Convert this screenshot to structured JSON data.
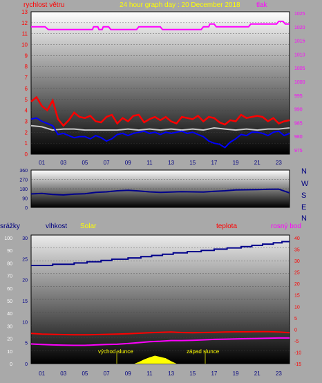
{
  "header": {
    "title": "24 hour graph day : 20 December 2018",
    "left_label": "rychlost větru",
    "right_label": "tlak"
  },
  "compass_labels": [
    "N",
    "W",
    "S",
    "E",
    "N"
  ],
  "bottom_labels": {
    "rain": "srážky",
    "humidity": "vlhkost",
    "solar": "Solar",
    "temperature": "teplota",
    "dewpoint": "rosný bod",
    "sunrise": "východ slunce",
    "sunset": "západ slunce"
  },
  "colors": {
    "background": "#a9a9a9",
    "title": "#ffff00",
    "wind_axis": "#ff0000",
    "pressure_axis": "#ff00ff",
    "gust": "#ff0000",
    "wind": "#0000ff",
    "wind_avg": "#c8c8c8",
    "pressure": "#ff00ff",
    "direction": "#00008b",
    "humidity": "#00008b",
    "solar": "#ffff00",
    "temperature": "#ff0000",
    "dewpoint": "#ff00ff",
    "rain_axis": "#ffffff",
    "compass": "#000080"
  },
  "chart_data": [
    {
      "type": "line",
      "title": "24 hour graph day : 20 December 2018",
      "x_ticks": [
        "01",
        "03",
        "05",
        "07",
        "09",
        "11",
        "13",
        "15",
        "17",
        "19",
        "21",
        "23"
      ],
      "xlim": [
        0,
        24
      ],
      "y_left": {
        "label": "rychlost větru",
        "ylim": [
          0,
          13
        ],
        "ticks": [
          "0",
          "1",
          "2",
          "3",
          "4",
          "5",
          "6",
          "7",
          "8",
          "9",
          "10",
          "11",
          "12",
          "13"
        ]
      },
      "y_right": {
        "label": "tlak",
        "ylim": [
          975,
          1025
        ],
        "ticks": [
          "975",
          "980",
          "985",
          "990",
          "995",
          "1000",
          "1005",
          "1010",
          "1015",
          "1020",
          "1025"
        ]
      },
      "series": [
        {
          "axis": "right",
          "style": "pressure",
          "x": [
            0,
            1.3,
            1.6,
            5.7,
            5.8,
            6.2,
            6.3,
            6.6,
            6.7,
            7.2,
            7.4,
            9.8,
            10,
            12.0,
            12.2,
            15.8,
            16,
            16.5,
            16.6,
            17.0,
            17.2,
            20.2,
            20.4,
            22.8,
            23.0,
            23.4,
            23.6,
            24
          ],
          "y": [
            1020,
            1020,
            1019,
            1019,
            1020,
            1020,
            1019,
            1019,
            1020,
            1020,
            1019,
            1019,
            1020,
            1020,
            1019,
            1019,
            1020,
            1020,
            1021,
            1021,
            1020,
            1020,
            1021,
            1021,
            1022,
            1022,
            1021,
            1021
          ]
        },
        {
          "axis": "left",
          "style": "gust",
          "x": [
            0,
            0.5,
            1,
            1.5,
            2,
            2.5,
            3,
            3.5,
            4,
            4.5,
            5,
            5.5,
            6,
            6.5,
            7,
            7.5,
            8,
            8.5,
            9,
            9.5,
            10,
            10.5,
            11,
            11.5,
            12,
            12.5,
            13,
            13.5,
            14,
            14.5,
            15,
            15.5,
            16,
            16.5,
            17,
            17.5,
            18,
            18.5,
            19,
            19.5,
            20,
            20.5,
            21,
            21.5,
            22,
            22.5,
            23,
            23.5,
            24
          ],
          "y": [
            4.8,
            5.2,
            4.4,
            4.0,
            4.9,
            3.2,
            2.6,
            3.1,
            3.8,
            3.4,
            3.3,
            3.5,
            3.0,
            2.9,
            3.4,
            3.6,
            2.8,
            3.3,
            3.0,
            3.5,
            3.6,
            2.9,
            3.2,
            3.4,
            3.1,
            3.4,
            3.0,
            2.8,
            3.4,
            3.3,
            3.2,
            3.5,
            3.0,
            3.4,
            3.3,
            2.9,
            2.7,
            3.1,
            3.0,
            3.6,
            3.3,
            3.4,
            3.5,
            3.4,
            3.0,
            3.3,
            2.8,
            3.0,
            3.1
          ]
        },
        {
          "axis": "left",
          "style": "wind_avg",
          "x": [
            0,
            1,
            2,
            3,
            4,
            5,
            6,
            7,
            8,
            9,
            10,
            11,
            12,
            13,
            14,
            15,
            16,
            17,
            18,
            19,
            20,
            21,
            22,
            23,
            24
          ],
          "y": [
            2.6,
            2.5,
            2.2,
            2.3,
            2.3,
            2.2,
            2.2,
            2.2,
            2.2,
            2.3,
            2.2,
            2.3,
            2.2,
            2.3,
            2.2,
            2.3,
            2.2,
            2.4,
            2.3,
            2.2,
            2.3,
            2.2,
            2.3,
            2.3,
            2.4
          ]
        },
        {
          "axis": "left",
          "style": "wind",
          "x": [
            0,
            0.5,
            1,
            1.5,
            2,
            2.5,
            3,
            3.5,
            4,
            4.5,
            5,
            5.5,
            6,
            6.5,
            7,
            7.5,
            8,
            8.5,
            9,
            9.5,
            10,
            10.5,
            11,
            11.5,
            12,
            12.5,
            13,
            13.5,
            14,
            14.5,
            15,
            15.5,
            16,
            16.5,
            17,
            17.5,
            18,
            18.5,
            19,
            19.5,
            20,
            20.5,
            21,
            21.5,
            22,
            22.5,
            23,
            23.5,
            24
          ],
          "y": [
            3.2,
            3.3,
            3.0,
            2.8,
            2.6,
            1.8,
            1.9,
            1.7,
            1.5,
            1.6,
            1.6,
            1.4,
            1.7,
            1.5,
            1.2,
            1.4,
            1.8,
            1.9,
            1.7,
            1.9,
            2.0,
            2.1,
            1.9,
            2.0,
            1.8,
            2.0,
            1.9,
            2.0,
            2.1,
            1.9,
            2.0,
            1.8,
            1.6,
            1.2,
            1.0,
            0.9,
            0.6,
            1.1,
            1.4,
            1.8,
            1.7,
            2.0,
            2.0,
            1.9,
            1.7,
            2.0,
            2.1,
            1.7,
            1.9
          ]
        }
      ]
    },
    {
      "type": "line",
      "title": "",
      "x_ticks": [
        "01",
        "03",
        "05",
        "07",
        "09",
        "11",
        "13",
        "15",
        "17",
        "19",
        "21",
        "23"
      ],
      "xlim": [
        0,
        24
      ],
      "y_left": {
        "label": "",
        "ylim": [
          0,
          360
        ],
        "ticks": [
          "0",
          "90",
          "180",
          "270",
          "360"
        ]
      },
      "series": [
        {
          "style": "direction",
          "x": [
            0,
            1,
            2,
            3,
            4,
            5,
            6,
            7,
            8,
            9,
            10,
            11,
            12,
            13,
            14,
            15,
            16,
            17,
            18,
            19,
            20,
            21,
            22,
            23,
            24
          ],
          "y": [
            130,
            135,
            125,
            120,
            128,
            132,
            145,
            150,
            160,
            165,
            158,
            150,
            145,
            148,
            152,
            150,
            148,
            155,
            160,
            168,
            170,
            172,
            175,
            176,
            140
          ]
        }
      ]
    },
    {
      "type": "line",
      "title": "",
      "x_ticks": [
        "01",
        "03",
        "05",
        "07",
        "09",
        "11",
        "13",
        "15",
        "17",
        "19",
        "21",
        "23"
      ],
      "xlim": [
        0,
        24
      ],
      "y_rain": {
        "label": "srážky",
        "ylim": [
          0,
          30
        ],
        "ticks": [
          "0",
          "5",
          "10",
          "15",
          "20",
          "25",
          "30"
        ]
      },
      "y_humidity": {
        "label": "vlhkost",
        "ylim": [
          0,
          100
        ],
        "ticks": [
          "0",
          "10",
          "20",
          "30",
          "40",
          "50",
          "60",
          "70",
          "80",
          "90",
          "100"
        ]
      },
      "y_temp": {
        "label": "teplota",
        "ylim": [
          -15,
          40
        ],
        "ticks": [
          "-15",
          "-10",
          "-5",
          "0",
          "5",
          "10",
          "15",
          "20",
          "25",
          "30",
          "35",
          "40"
        ]
      },
      "annotations": [
        "východ slunce",
        "západ slunce"
      ],
      "series": [
        {
          "axis": "humidity",
          "style": "humidity",
          "x": [
            0,
            2.0,
            2.0,
            4.0,
            4.0,
            5.2,
            5.2,
            6.5,
            6.5,
            7.5,
            7.5,
            9.0,
            9.0,
            10.2,
            10.2,
            11.2,
            11.2,
            12.2,
            12.2,
            13.2,
            13.2,
            14.5,
            14.5,
            15.8,
            15.8,
            17.0,
            17.0,
            18.2,
            18.2,
            19.5,
            19.5,
            20.5,
            20.5,
            21.5,
            21.5,
            22.5,
            22.5,
            23.3,
            23.3,
            24
          ],
          "y": [
            78,
            78,
            79,
            79,
            80,
            80,
            81,
            81,
            82,
            82,
            83,
            83,
            84,
            84,
            85,
            85,
            86,
            86,
            87,
            87,
            88,
            88,
            89,
            89,
            90,
            90,
            91,
            91,
            92,
            92,
            93,
            93,
            94,
            94,
            95,
            95,
            96,
            96,
            97,
            97
          ]
        },
        {
          "axis": "temp",
          "style": "temperature",
          "x": [
            0,
            1,
            2,
            3,
            4,
            5,
            6,
            7,
            8,
            9,
            10,
            11,
            12,
            13,
            14,
            15,
            16,
            17,
            18,
            19,
            20,
            21,
            22,
            23,
            24
          ],
          "y": [
            -1.8,
            -2.1,
            -2.2,
            -2.3,
            -2.4,
            -2.4,
            -2.3,
            -2.2,
            -2.1,
            -1.9,
            -1.7,
            -1.5,
            -1.3,
            -1.2,
            -1.4,
            -1.5,
            -1.4,
            -1.3,
            -1.2,
            -1.1,
            -1.1,
            -1.0,
            -1.0,
            -1.2,
            -1.5
          ]
        },
        {
          "axis": "temp",
          "style": "dewpoint",
          "x": [
            0,
            1,
            2,
            3,
            4,
            5,
            6,
            7,
            8,
            9,
            10,
            11,
            12,
            13,
            14,
            15,
            16,
            17,
            18,
            19,
            20,
            21,
            22,
            23,
            24
          ],
          "y": [
            -6.4,
            -6.6,
            -6.8,
            -6.9,
            -7.0,
            -7.0,
            -6.8,
            -6.6,
            -6.5,
            -6.2,
            -5.8,
            -5.4,
            -5.2,
            -4.9,
            -4.9,
            -4.8,
            -4.6,
            -4.4,
            -4.3,
            -4.2,
            -4.1,
            -4.0,
            -3.9,
            -3.8,
            -3.8
          ]
        },
        {
          "axis": "rain",
          "style": "solar",
          "x": [
            9.6,
            10.0,
            10.5,
            11.0,
            11.5,
            12.0,
            12.5,
            13.0,
            13.5
          ],
          "y": [
            0,
            0.4,
            1.0,
            1.5,
            1.9,
            1.6,
            1.3,
            0.6,
            0
          ]
        }
      ]
    }
  ]
}
